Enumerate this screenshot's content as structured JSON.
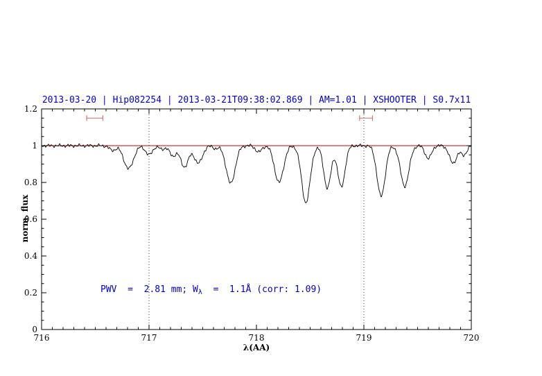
{
  "title": "2013-03-20 | Hip082254 | 2013-03-21T09:38:02.869 | AM=1.01 | XSHOOTER | S0.7x11",
  "annotation": {
    "prefix": "PWV  =  2.81 mm; W",
    "sub": "λ",
    "suffix": "  =  1.1Å (corr: 1.09)"
  },
  "colors": {
    "title": "#0000dd",
    "annotation": "#0000dd",
    "continuum": "#cc0000",
    "marker": "#d06a6a",
    "spectrum": "#000000",
    "frame": "#000000"
  },
  "chart_data": {
    "type": "line",
    "title": "2013-03-20 | Hip082254 | 2013-03-21T09:38:02.869 | AM=1.01 | XSHOOTER | S0.7x11",
    "xlabel": "λ(AA)",
    "ylabel": "norm. flux",
    "xlim": [
      716,
      720
    ],
    "ylim": [
      0,
      1.2
    ],
    "grid": false,
    "xticks": [
      716,
      717,
      718,
      719,
      720
    ],
    "xtick_labels": [
      "716",
      "717",
      "718",
      "719",
      "720"
    ],
    "yticks": [
      0,
      0.2,
      0.4,
      0.6,
      0.8,
      1,
      1.2
    ],
    "ytick_labels": [
      "0",
      "0.2",
      "0.4",
      "0.6",
      "0.8",
      "1",
      "1.2"
    ],
    "dotted_guides_x": [
      717,
      719
    ],
    "continuum_y": 1.0,
    "interval_markers": [
      {
        "x1": 716.42,
        "x2": 716.57,
        "y": 1.15
      },
      {
        "x1": 718.96,
        "x2": 719.08,
        "y": 1.15
      }
    ],
    "absorption_lines_columns": [
      "center_AA",
      "depth",
      "sigma_AA"
    ],
    "absorption_lines": [
      [
        716.66,
        0.025,
        0.03
      ],
      [
        716.81,
        0.125,
        0.045
      ],
      [
        717.0,
        0.05,
        0.032
      ],
      [
        717.12,
        0.02,
        0.025
      ],
      [
        717.22,
        0.055,
        0.03
      ],
      [
        717.33,
        0.115,
        0.038
      ],
      [
        717.46,
        0.095,
        0.038
      ],
      [
        717.62,
        0.015,
        0.025
      ],
      [
        717.76,
        0.205,
        0.042
      ],
      [
        718.02,
        0.035,
        0.028
      ],
      [
        718.21,
        0.2,
        0.042
      ],
      [
        718.46,
        0.31,
        0.04
      ],
      [
        718.66,
        0.23,
        0.034
      ],
      [
        718.79,
        0.225,
        0.034
      ],
      [
        719.16,
        0.275,
        0.038
      ],
      [
        719.38,
        0.22,
        0.04
      ],
      [
        719.6,
        0.07,
        0.03
      ],
      [
        719.83,
        0.095,
        0.035
      ],
      [
        719.93,
        0.05,
        0.028
      ]
    ],
    "noise_amplitude": 0.005
  }
}
